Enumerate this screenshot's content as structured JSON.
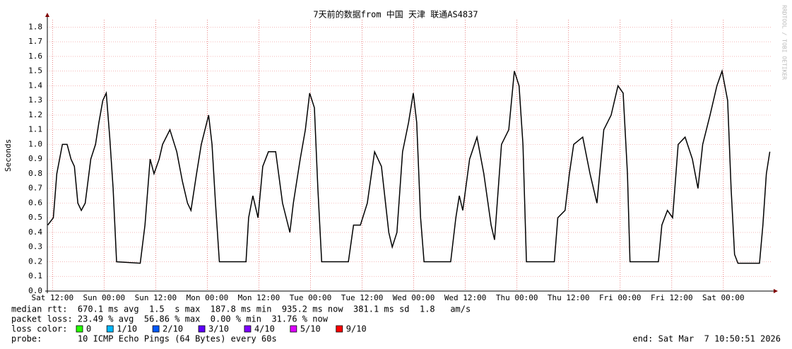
{
  "chart_data": {
    "type": "line",
    "title": "7天前的数据from 中国 天津 联通AS4837",
    "y_label": "Seconds",
    "watermark": "RRDTOOL / TOBI OETIKER",
    "xlim": [
      -1.2,
      167.2
    ],
    "xticks": [
      {
        "value": 0,
        "label": "Sat 12:00"
      },
      {
        "value": 12,
        "label": "Sun 00:00"
      },
      {
        "value": 24,
        "label": "Sun 12:00"
      },
      {
        "value": 36,
        "label": "Mon 00:00"
      },
      {
        "value": 48,
        "label": "Mon 12:00"
      },
      {
        "value": 60,
        "label": "Tue 00:00"
      },
      {
        "value": 72,
        "label": "Tue 12:00"
      },
      {
        "value": 84,
        "label": "Wed 00:00"
      },
      {
        "value": 96,
        "label": "Wed 12:00"
      },
      {
        "value": 108,
        "label": "Thu 00:00"
      },
      {
        "value": 120,
        "label": "Thu 12:00"
      },
      {
        "value": 132,
        "label": "Fri 00:00"
      },
      {
        "value": 144,
        "label": "Fri 12:00"
      },
      {
        "value": 156,
        "label": "Sat 00:00"
      }
    ],
    "ylim": [
      0,
      1.85
    ],
    "yticks": [
      {
        "value": 0,
        "label": "0.0"
      },
      {
        "value": 0.1,
        "label": "0.1"
      },
      {
        "value": 0.2,
        "label": "0.2"
      },
      {
        "value": 0.3,
        "label": "0.3"
      },
      {
        "value": 0.4,
        "label": "0.4"
      },
      {
        "value": 0.5,
        "label": "0.5"
      },
      {
        "value": 0.6,
        "label": "0.6"
      },
      {
        "value": 0.7,
        "label": "0.7"
      },
      {
        "value": 0.8,
        "label": "0.8"
      },
      {
        "value": 0.9,
        "label": "0.9"
      },
      {
        "value": 1,
        "label": "1.0"
      },
      {
        "value": 1.1,
        "label": "1.1"
      },
      {
        "value": 1.2,
        "label": "1.2"
      },
      {
        "value": 1.3,
        "label": "1.3"
      },
      {
        "value": 1.4,
        "label": "1.4"
      },
      {
        "value": 1.5,
        "label": "1.5"
      },
      {
        "value": 1.6,
        "label": "1.6"
      },
      {
        "value": 1.7,
        "label": "1.7"
      },
      {
        "value": 1.8,
        "label": "1.8"
      }
    ],
    "grid": true,
    "x": [
      -1.1,
      0.2,
      1.0,
      2.3,
      3.4,
      4.3,
      5.1,
      5.9,
      6.7,
      7.6,
      8.9,
      10.0,
      10.8,
      11.7,
      12.5,
      13.3,
      14.1,
      14.9,
      20.4,
      21.5,
      22.7,
      23.6,
      24.8,
      25.6,
      27.3,
      28.9,
      30.2,
      31.4,
      32.2,
      33.5,
      34.6,
      36.3,
      37.1,
      37.9,
      38.8,
      45.0,
      45.6,
      46.6,
      47.8,
      48.9,
      50.2,
      51.9,
      53.5,
      55.2,
      56.0,
      57.6,
      58.8,
      59.8,
      60.9,
      61.7,
      62.6,
      68.8,
      70.0,
      71.6,
      73.2,
      74.9,
      76.5,
      78.2,
      79.0,
      80.1,
      81.4,
      82.8,
      83.9,
      84.7,
      85.6,
      86.4,
      92.6,
      93.8,
      94.6,
      95.4,
      97.0,
      98.7,
      100.3,
      102.0,
      102.8,
      104.4,
      106.1,
      107.4,
      108.5,
      109.4,
      110.2,
      116.7,
      117.5,
      119.2,
      120.2,
      121.2,
      123.3,
      125.0,
      126.6,
      128.2,
      129.9,
      131.5,
      132.7,
      133.7,
      134.3,
      140.9,
      141.7,
      143.0,
      144.2,
      145.5,
      147.1,
      148.8,
      150.1,
      151.2,
      152.9,
      154.5,
      155.7,
      157.0,
      157.8,
      158.6,
      159.4,
      164.4,
      165.2,
      166.0,
      166.8
    ],
    "series": [
      {
        "color": "#000000",
        "values": [
          0.45,
          0.5,
          0.8,
          1.0,
          1.0,
          0.9,
          0.85,
          0.6,
          0.55,
          0.6,
          0.9,
          1.0,
          1.15,
          1.3,
          1.35,
          1.05,
          0.7,
          0.2,
          0.19,
          0.45,
          0.9,
          0.8,
          0.9,
          1.0,
          1.1,
          0.95,
          0.75,
          0.6,
          0.55,
          0.8,
          1.0,
          1.2,
          1.0,
          0.6,
          0.2,
          0.2,
          0.5,
          0.65,
          0.5,
          0.85,
          0.95,
          0.95,
          0.6,
          0.4,
          0.6,
          0.9,
          1.1,
          1.35,
          1.25,
          0.7,
          0.2,
          0.2,
          0.45,
          0.45,
          0.6,
          0.95,
          0.85,
          0.4,
          0.3,
          0.4,
          0.95,
          1.15,
          1.35,
          1.15,
          0.5,
          0.2,
          0.2,
          0.5,
          0.65,
          0.55,
          0.9,
          1.05,
          0.8,
          0.45,
          0.35,
          1.0,
          1.1,
          1.5,
          1.4,
          1.0,
          0.2,
          0.2,
          0.5,
          0.55,
          0.8,
          1.0,
          1.05,
          0.8,
          0.6,
          1.1,
          1.2,
          1.4,
          1.35,
          0.8,
          0.2,
          0.2,
          0.45,
          0.55,
          0.5,
          1.0,
          1.05,
          0.9,
          0.7,
          1.0,
          1.2,
          1.4,
          1.5,
          1.3,
          0.7,
          0.25,
          0.19,
          0.19,
          0.45,
          0.8,
          0.95
        ]
      }
    ],
    "stats": [
      "median rtt:  670.1 ms avg  1.5  s max  187.8 ms min  935.2 ms now  381.1 ms sd  1.8   am/s",
      "packet loss: 23.49 % avg  56.86 % max  0.00 % min  31.76 % now"
    ],
    "loss_title": "loss color:",
    "loss_colors": [
      {
        "label": "0",
        "color": "#26ff00"
      },
      {
        "label": "1/10",
        "color": "#00b8ff"
      },
      {
        "label": "2/10",
        "color": "#0059ff"
      },
      {
        "label": "3/10",
        "color": "#5e00ff"
      },
      {
        "label": "4/10",
        "color": "#7e00ff"
      },
      {
        "label": "5/10",
        "color": "#dd00ff"
      },
      {
        "label": "9/10",
        "color": "#ff0000"
      }
    ],
    "probe": "probe:       10 ICMP Echo Pings (64 Bytes) every 60s",
    "end": "end: Sat Mar  7 10:50:51 2026"
  }
}
